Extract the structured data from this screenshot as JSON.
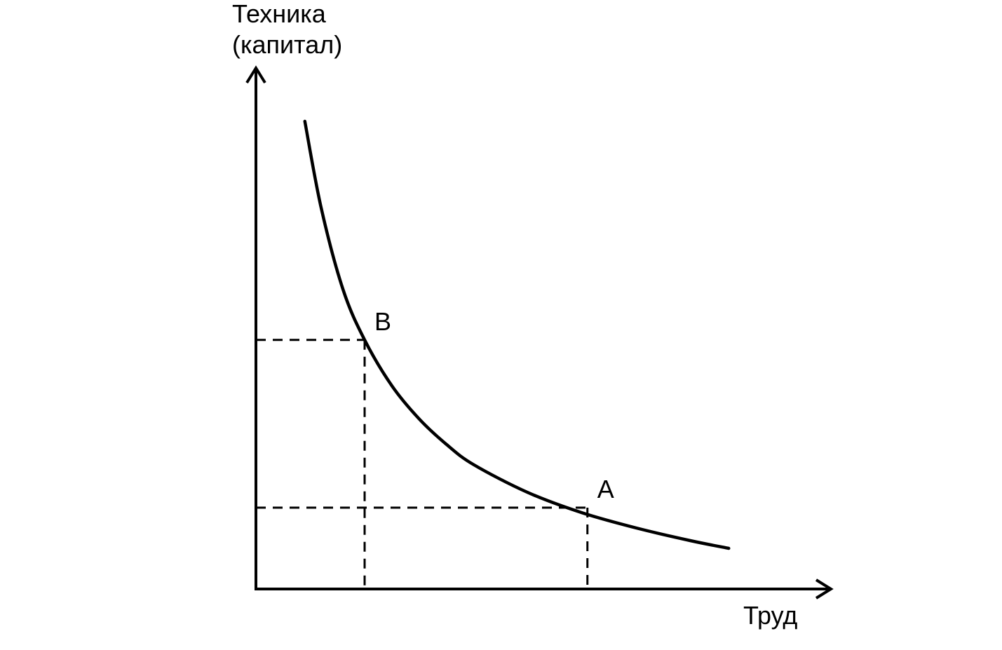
{
  "chart_data": {
    "type": "line",
    "title": "",
    "ylabel": [
      "Техника",
      "(капитал)"
    ],
    "xlabel": "Труд",
    "xlim": [
      0,
      10
    ],
    "ylim": [
      0,
      10
    ],
    "grid": false,
    "legend": "none",
    "series": [
      {
        "values_x": [
          0.9,
          1.2,
          1.6,
          2.0,
          2.5,
          3.0,
          3.5,
          4.0,
          5.0,
          6.0,
          7.0,
          8.0,
          8.7
        ],
        "values_y": [
          9.2,
          7.5,
          5.9,
          4.9,
          4.0,
          3.35,
          2.85,
          2.45,
          1.9,
          1.5,
          1.2,
          0.95,
          0.8
        ]
      }
    ],
    "points": [
      {
        "label": "B",
        "x": 2.0,
        "y": 4.9
      },
      {
        "label": "A",
        "x": 6.1,
        "y": 1.6
      }
    ],
    "colors": {
      "curve": "#000000",
      "axes": "#000000",
      "guides": "#000000"
    }
  }
}
